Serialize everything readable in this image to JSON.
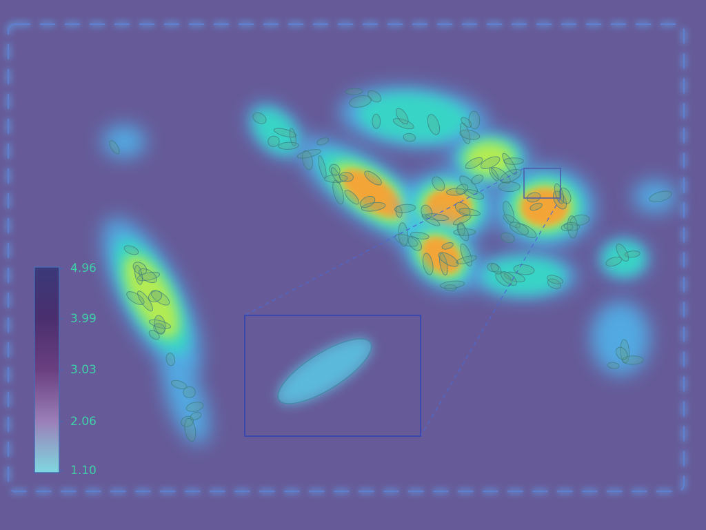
{
  "chart_data": {
    "type": "heatmap",
    "clim": [
      1.1,
      4.96
    ],
    "cticks": [
      {
        "value": 1.1,
        "label": "1.10"
      },
      2.06,
      3.03,
      3.99,
      4.96
    ]
  }
}
